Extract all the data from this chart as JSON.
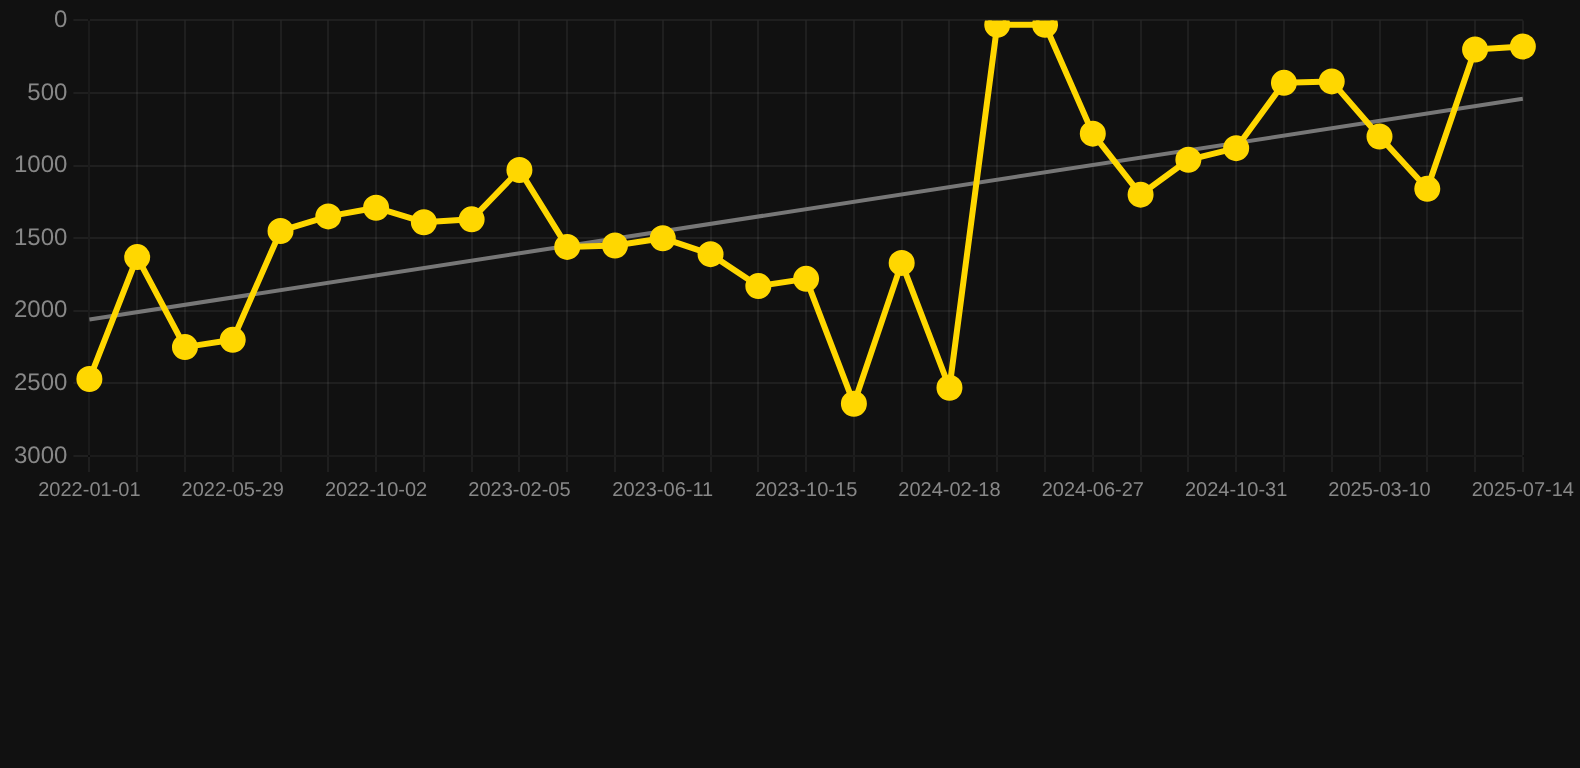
{
  "chart_data": {
    "type": "line",
    "categories": [
      "2022-01-01",
      null,
      null,
      "2022-05-29",
      null,
      null,
      "2022-10-02",
      null,
      null,
      "2023-02-05",
      null,
      null,
      "2023-06-11",
      null,
      null,
      "2023-10-15",
      null,
      null,
      "2024-02-18",
      null,
      null,
      "2024-06-27",
      null,
      null,
      "2024-10-31",
      null,
      null,
      "2025-03-10",
      null,
      null,
      "2025-07-14"
    ],
    "series": [
      {
        "color": "#ffd700",
        "marker": "circle",
        "values": [
          2470,
          1630,
          2250,
          2200,
          1450,
          1350,
          1290,
          1390,
          1370,
          1030,
          1560,
          1550,
          1500,
          1610,
          1830,
          1780,
          2640,
          1670,
          2530,
          30,
          30,
          780,
          1200,
          960,
          880,
          430,
          420,
          800,
          1160,
          200,
          180
        ]
      },
      {
        "type": "line",
        "color": "#777777",
        "marker": "none",
        "values": [
          2060,
          null,
          null,
          null,
          null,
          null,
          null,
          null,
          null,
          null,
          null,
          null,
          null,
          null,
          null,
          null,
          null,
          null,
          null,
          null,
          null,
          null,
          null,
          null,
          null,
          null,
          null,
          null,
          null,
          null,
          540
        ]
      }
    ],
    "ylim": [
      3000,
      0
    ],
    "yticks": [
      0,
      500,
      1000,
      1500,
      2000,
      2500,
      3000
    ],
    "grid": true
  }
}
